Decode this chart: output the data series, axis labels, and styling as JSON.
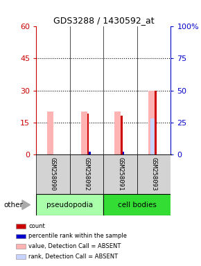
{
  "title": "GDS3288 / 1430592_at",
  "samples": [
    "GSM258090",
    "GSM258092",
    "GSM258091",
    "GSM258093"
  ],
  "groups": [
    "pseudopodia",
    "pseudopodia",
    "cell bodies",
    "cell bodies"
  ],
  "group_colors": {
    "pseudopodia": "#aaffaa",
    "cell bodies": "#33dd33"
  },
  "ylim_left": [
    0,
    60
  ],
  "ylim_right": [
    0,
    100
  ],
  "yticks_left": [
    0,
    15,
    30,
    45,
    60
  ],
  "yticks_right": [
    0,
    25,
    50,
    75,
    100
  ],
  "ytick_labels_left": [
    "0",
    "15",
    "30",
    "45",
    "60"
  ],
  "ytick_labels_right": [
    "0",
    "25",
    "50",
    "75",
    "100%"
  ],
  "count_values": [
    0,
    19,
    18,
    30
  ],
  "rank_values": [
    0,
    2,
    2,
    0
  ],
  "absent_value_values": [
    20,
    20,
    20,
    30
  ],
  "absent_rank_values": [
    0,
    0,
    0,
    28
  ],
  "colors": {
    "count": "#cc0000",
    "rank": "#0000cc",
    "absent_value": "#ffb3b3",
    "absent_rank": "#c8d4ff"
  },
  "legend_items": [
    {
      "color": "#cc0000",
      "label": "count"
    },
    {
      "color": "#0000cc",
      "label": "percentile rank within the sample"
    },
    {
      "color": "#ffb3b3",
      "label": "value, Detection Call = ABSENT"
    },
    {
      "color": "#c8d4ff",
      "label": "rank, Detection Call = ABSENT"
    }
  ],
  "background_color": "#ffffff",
  "left_axis_color": "#cc0000",
  "right_axis_color": "#0000cc"
}
